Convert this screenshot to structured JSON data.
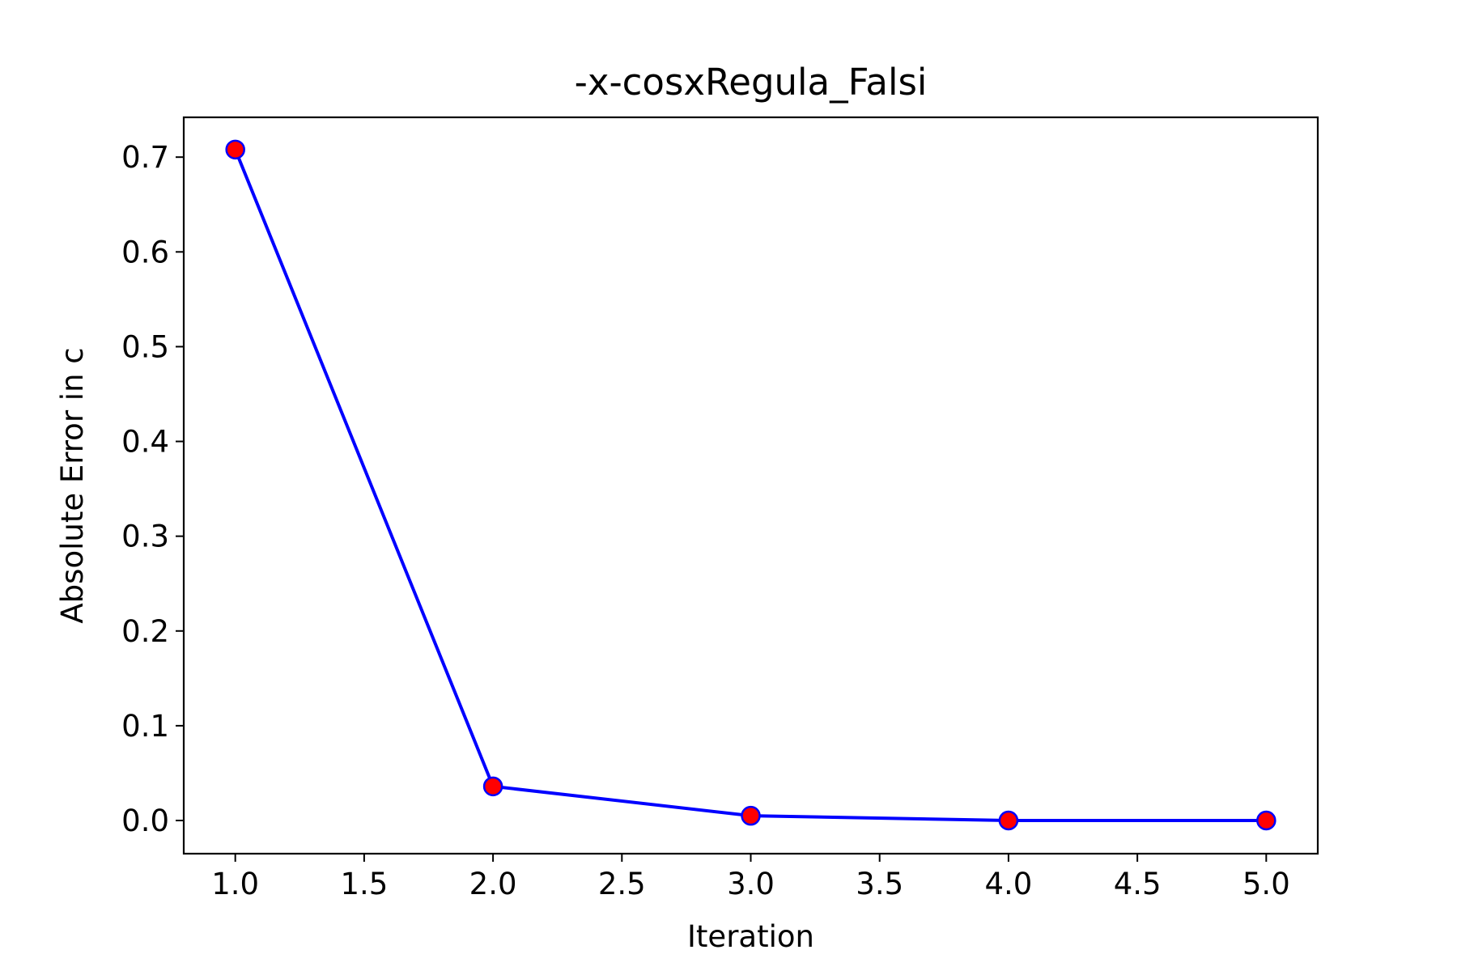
{
  "chart_data": {
    "type": "line",
    "title": "-x-cosxRegula_Falsi",
    "xlabel": "Iteration",
    "ylabel": "Absolute Error in c",
    "xlim": [
      0.8,
      5.2
    ],
    "ylim": [
      -0.035,
      0.742
    ],
    "xticks": [
      1.0,
      1.5,
      2.0,
      2.5,
      3.0,
      3.5,
      4.0,
      4.5,
      5.0
    ],
    "xtick_labels": [
      "1.0",
      "1.5",
      "2.0",
      "2.5",
      "3.0",
      "3.5",
      "4.0",
      "4.5",
      "5.0"
    ],
    "yticks": [
      0.0,
      0.1,
      0.2,
      0.3,
      0.4,
      0.5,
      0.6,
      0.7
    ],
    "ytick_labels": [
      "0.0",
      "0.1",
      "0.2",
      "0.3",
      "0.4",
      "0.5",
      "0.6",
      "0.7"
    ],
    "grid": false,
    "series": [
      {
        "x": [
          1,
          2,
          3,
          4,
          5
        ],
        "values": [
          0.708,
          0.036,
          0.005,
          0.0,
          0.0
        ],
        "line_color": "#0000ff",
        "marker_fill": "#ff0000",
        "marker_edge": "#0000ff"
      }
    ]
  }
}
